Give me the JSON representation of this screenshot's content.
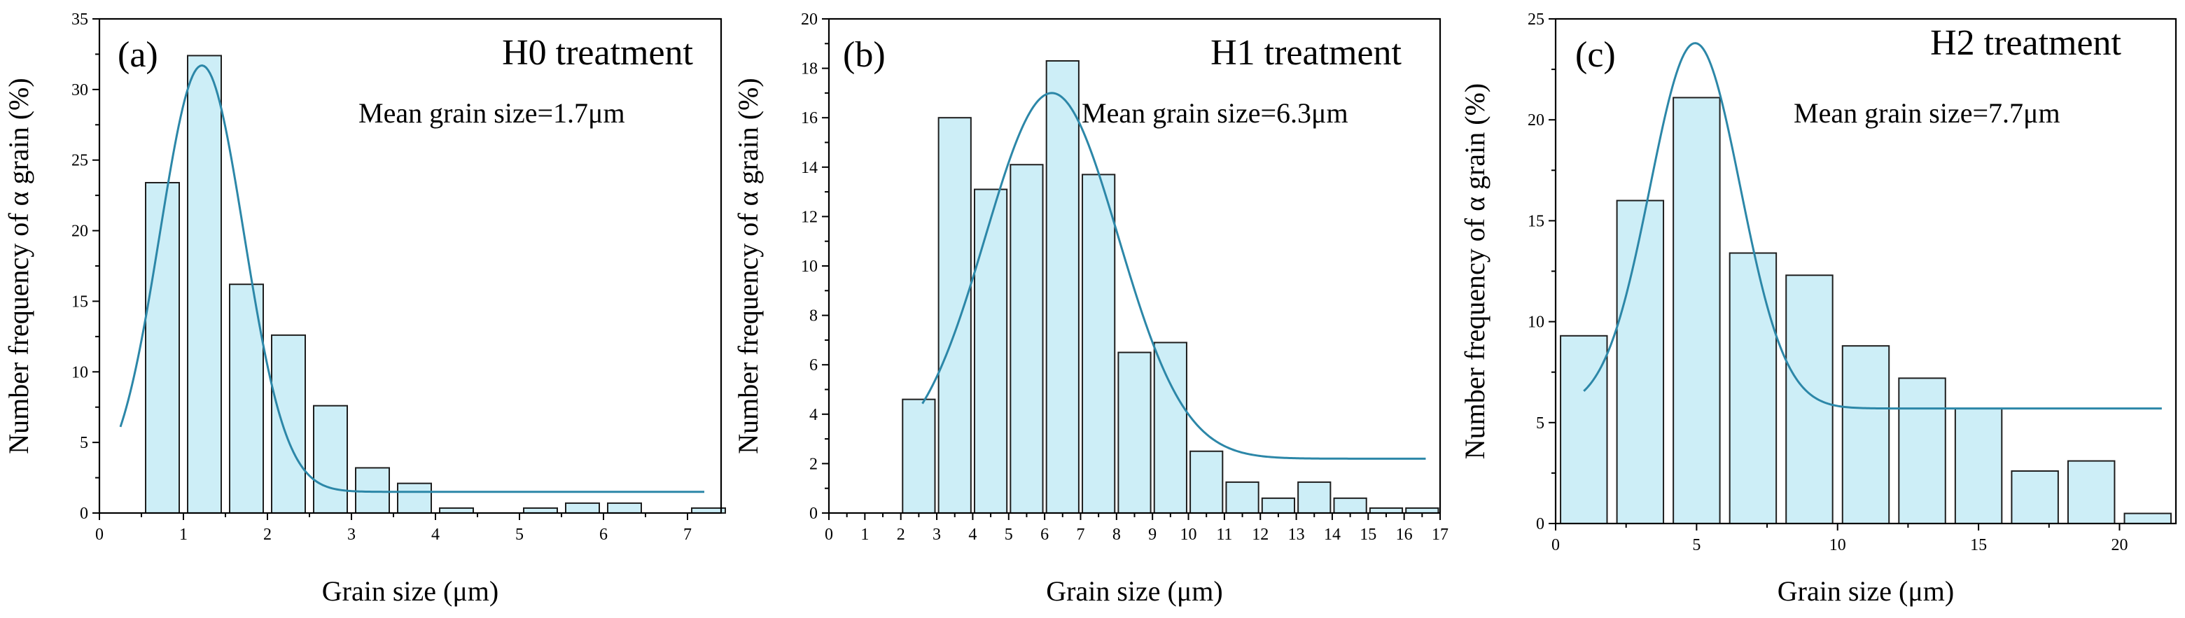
{
  "chart_data": [
    {
      "type": "bar",
      "panel_label": "(a)",
      "title": "H0 treatment",
      "annotation": "Mean grain size=1.7μm",
      "xlabel": "Grain size (μm)",
      "ylabel": "Number frequency of α grain (%)",
      "xlim": [
        0,
        7.4
      ],
      "ylim": [
        0,
        35
      ],
      "xticks": [
        0,
        1,
        2,
        3,
        4,
        5,
        6,
        7
      ],
      "yticks": [
        0,
        5,
        10,
        15,
        20,
        25,
        30,
        35
      ],
      "bin_width": 0.4,
      "bins": [
        {
          "x": 0.75,
          "value": 23.4
        },
        {
          "x": 1.25,
          "value": 32.4
        },
        {
          "x": 1.75,
          "value": 16.2
        },
        {
          "x": 2.25,
          "value": 12.6
        },
        {
          "x": 2.75,
          "value": 7.6
        },
        {
          "x": 3.25,
          "value": 3.2
        },
        {
          "x": 3.75,
          "value": 2.1
        },
        {
          "x": 4.25,
          "value": 0.35
        },
        {
          "x": 5.25,
          "value": 0.35
        },
        {
          "x": 5.75,
          "value": 0.7
        },
        {
          "x": 6.25,
          "value": 0.7
        },
        {
          "x": 7.25,
          "value": 0.35
        }
      ],
      "fit": {
        "type": "gaussian",
        "y0": 1.5,
        "amplitude": 30.2,
        "center": 1.22,
        "sigma": 0.5,
        "x_from": 0.25,
        "x_to": 7.2
      }
    },
    {
      "type": "bar",
      "panel_label": "(b)",
      "title": "H1 treatment",
      "annotation": "Mean grain size=6.3μm",
      "xlabel": "Grain size (μm)",
      "ylabel": "Number frequency of α grain (%)",
      "xlim": [
        0,
        17
      ],
      "ylim": [
        0,
        20
      ],
      "xticks": [
        0,
        1,
        2,
        3,
        4,
        5,
        6,
        7,
        8,
        9,
        10,
        11,
        12,
        13,
        14,
        15,
        16,
        17
      ],
      "yticks": [
        0,
        2,
        4,
        6,
        8,
        10,
        12,
        14,
        16,
        18,
        20
      ],
      "bin_width": 0.9,
      "bins": [
        {
          "x": 2.5,
          "value": 4.6
        },
        {
          "x": 3.5,
          "value": 16.0
        },
        {
          "x": 4.5,
          "value": 13.1
        },
        {
          "x": 5.5,
          "value": 14.1
        },
        {
          "x": 6.5,
          "value": 18.3
        },
        {
          "x": 7.5,
          "value": 13.7
        },
        {
          "x": 8.5,
          "value": 6.5
        },
        {
          "x": 9.5,
          "value": 6.9
        },
        {
          "x": 10.5,
          "value": 2.5
        },
        {
          "x": 11.5,
          "value": 1.25
        },
        {
          "x": 12.5,
          "value": 0.6
        },
        {
          "x": 13.5,
          "value": 1.25
        },
        {
          "x": 14.5,
          "value": 0.6
        },
        {
          "x": 15.5,
          "value": 0.2
        },
        {
          "x": 16.5,
          "value": 0.2
        }
      ],
      "fit": {
        "type": "gaussian",
        "y0": 2.2,
        "amplitude": 14.8,
        "center": 6.2,
        "sigma": 1.85,
        "x_from": 2.6,
        "x_to": 16.6
      }
    },
    {
      "type": "bar",
      "panel_label": "(c)",
      "title": "H2 treatment",
      "annotation": "Mean grain size=7.7μm",
      "xlabel": "Grain size (μm)",
      "ylabel": "Number frequency of α grain (%)",
      "xlim": [
        0,
        22
      ],
      "ylim": [
        0,
        25
      ],
      "xticks": [
        0,
        5,
        10,
        15,
        20
      ],
      "yticks": [
        0,
        5,
        10,
        15,
        20,
        25
      ],
      "bin_width": 1.65,
      "bins": [
        {
          "x": 1.0,
          "value": 9.3
        },
        {
          "x": 3.0,
          "value": 16.0
        },
        {
          "x": 5.0,
          "value": 21.1
        },
        {
          "x": 7.0,
          "value": 13.4
        },
        {
          "x": 9.0,
          "value": 12.3
        },
        {
          "x": 11.0,
          "value": 8.8
        },
        {
          "x": 13.0,
          "value": 7.2
        },
        {
          "x": 15.0,
          "value": 5.7
        },
        {
          "x": 17.0,
          "value": 2.6
        },
        {
          "x": 19.0,
          "value": 3.1
        },
        {
          "x": 21.0,
          "value": 0.5
        }
      ],
      "fit": {
        "type": "gaussian",
        "y0": 5.7,
        "amplitude": 18.1,
        "center": 4.95,
        "sigma": 1.6,
        "x_from": 1.0,
        "x_to": 21.5
      }
    }
  ],
  "colors": {
    "bar_fill": "#cdeef7",
    "bar_edge": "#1e1e1e",
    "fit_line": "#2c87a8",
    "axis": "#000000"
  }
}
